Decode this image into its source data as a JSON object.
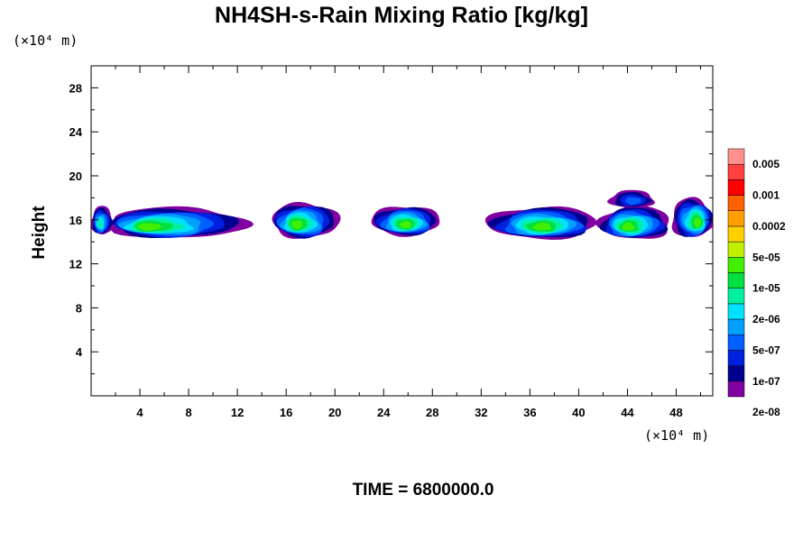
{
  "chart_data": {
    "type": "contour",
    "title": "NH4SH-s-Rain Mixing Ratio [kg/kg]",
    "ylabel": "Height",
    "x_unit_label": "(×10⁴ m)",
    "y_unit_label": "(×10⁴ m)",
    "xlim": [
      0,
      51
    ],
    "ylim": [
      0,
      30
    ],
    "x_ticks": [
      "4",
      "8",
      "12",
      "16",
      "20",
      "24",
      "28",
      "32",
      "36",
      "40",
      "44",
      "48"
    ],
    "y_ticks": [
      "4",
      "8",
      "12",
      "16",
      "20",
      "24",
      "28"
    ],
    "time_label": "TIME = 6800000.0",
    "colorbar": {
      "levels_shown": [
        "0.005",
        "0.001",
        "0.0002",
        "5e-05",
        "1e-05",
        "2e-06",
        "5e-07",
        "1e-07",
        "2e-08"
      ],
      "colors": [
        "#8000a0",
        "#000090",
        "#0020e0",
        "#0060ff",
        "#00a0ff",
        "#00e0ff",
        "#00f0a0",
        "#00e040",
        "#40f000",
        "#c0f000",
        "#ffd000",
        "#ffa000",
        "#ff6000",
        "#ff0000",
        "#ff4040",
        "#ff9090"
      ]
    },
    "blobs": [
      {
        "x0": 0,
        "x1": 1.8,
        "yc": 15.8,
        "h": 2.6,
        "peak": 6,
        "core_x": 0.7
      },
      {
        "x0": 1.3,
        "x1": 12.7,
        "yc": 15.6,
        "h": 2.8,
        "peak": 8,
        "core_x": 4.5
      },
      {
        "x0": 14.8,
        "x1": 20.3,
        "yc": 15.8,
        "h": 3.2,
        "peak": 8,
        "core_x": 16.8
      },
      {
        "x0": 23.0,
        "x1": 28.6,
        "yc": 15.8,
        "h": 2.7,
        "peak": 8,
        "core_x": 25.8
      },
      {
        "x0": 32.5,
        "x1": 41.5,
        "yc": 15.6,
        "h": 2.9,
        "peak": 8,
        "core_x": 37.0
      },
      {
        "x0": 41.7,
        "x1": 47.6,
        "yc": 15.6,
        "h": 3.0,
        "peak": 8,
        "core_x": 44.0
      },
      {
        "x0": 42.5,
        "x1": 46.2,
        "yc": 17.8,
        "h": 1.6,
        "peak": 3,
        "core_x": 44.5
      },
      {
        "x0": 47.6,
        "x1": 51,
        "yc": 16.0,
        "h": 3.6,
        "peak": 8,
        "core_x": 49.8
      }
    ]
  }
}
